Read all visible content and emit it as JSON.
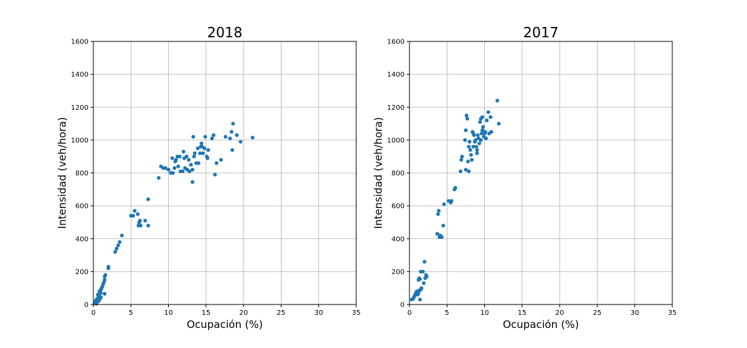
{
  "chart_data": [
    {
      "type": "scatter",
      "title": "2018",
      "xlabel": "Ocupación (%)",
      "ylabel": "Intensidad (veh/hora)",
      "xlim": [
        0,
        35
      ],
      "ylim": [
        0,
        1600
      ],
      "xticks": [
        "0",
        "5",
        "10",
        "15",
        "20",
        "25",
        "30",
        "35"
      ],
      "yticks": [
        "0",
        "200",
        "400",
        "600",
        "800",
        "1000",
        "1200",
        "1400",
        "1600"
      ],
      "grid": true,
      "color": "#1f77b4",
      "series": [
        {
          "points": [
            [
              0.2,
              10
            ],
            [
              0.3,
              20
            ],
            [
              0.4,
              30
            ],
            [
              0.5,
              15
            ],
            [
              0.6,
              40
            ],
            [
              0.7,
              25
            ],
            [
              0.8,
              50
            ],
            [
              0.6,
              60
            ],
            [
              0.9,
              35
            ],
            [
              1.0,
              70
            ],
            [
              0.8,
              80
            ],
            [
              1.0,
              90
            ],
            [
              1.1,
              100
            ],
            [
              1.2,
              110
            ],
            [
              1.3,
              125
            ],
            [
              1.4,
              135
            ],
            [
              1.5,
              150
            ],
            [
              1.5,
              170
            ],
            [
              1.6,
              180
            ],
            [
              1.5,
              65
            ],
            [
              1.0,
              45
            ],
            [
              0.7,
              20
            ],
            [
              0.4,
              5
            ],
            [
              2.0,
              220
            ],
            [
              2.0,
              230
            ],
            [
              2.9,
              320
            ],
            [
              3.1,
              340
            ],
            [
              3.3,
              360
            ],
            [
              3.5,
              380
            ],
            [
              3.8,
              420
            ],
            [
              5.0,
              540
            ],
            [
              5.3,
              540
            ],
            [
              5.5,
              570
            ],
            [
              5.9,
              550
            ],
            [
              6.0,
              480
            ],
            [
              6.1,
              500
            ],
            [
              6.2,
              510
            ],
            [
              6.3,
              480
            ],
            [
              6.9,
              510
            ],
            [
              7.3,
              480
            ],
            [
              7.3,
              640
            ],
            [
              8.7,
              770
            ],
            [
              9.0,
              840
            ],
            [
              9.3,
              830
            ],
            [
              9.6,
              830
            ],
            [
              10.0,
              820
            ],
            [
              10.3,
              800
            ],
            [
              10.5,
              890
            ],
            [
              10.6,
              800
            ],
            [
              10.8,
              830
            ],
            [
              10.9,
              870
            ],
            [
              11.0,
              880
            ],
            [
              11.2,
              900
            ],
            [
              11.3,
              840
            ],
            [
              11.5,
              900
            ],
            [
              11.6,
              810
            ],
            [
              11.9,
              810
            ],
            [
              12.0,
              930
            ],
            [
              12.1,
              890
            ],
            [
              12.2,
              830
            ],
            [
              12.4,
              900
            ],
            [
              12.5,
              820
            ],
            [
              12.7,
              880
            ],
            [
              12.8,
              810
            ],
            [
              13.0,
              850
            ],
            [
              13.2,
              820
            ],
            [
              13.2,
              745
            ],
            [
              13.3,
              1020
            ],
            [
              13.4,
              900
            ],
            [
              13.5,
              920
            ],
            [
              13.7,
              860
            ],
            [
              13.9,
              950
            ],
            [
              14.0,
              860
            ],
            [
              14.2,
              920
            ],
            [
              14.3,
              960
            ],
            [
              14.4,
              980
            ],
            [
              14.5,
              960
            ],
            [
              14.6,
              920
            ],
            [
              14.8,
              950
            ],
            [
              14.9,
              1020
            ],
            [
              15.1,
              900
            ],
            [
              15.2,
              890
            ],
            [
              15.3,
              940
            ],
            [
              15.8,
              1010
            ],
            [
              16.0,
              1030
            ],
            [
              16.2,
              790
            ],
            [
              16.4,
              860
            ],
            [
              17.0,
              880
            ],
            [
              17.6,
              1020
            ],
            [
              18.2,
              1010
            ],
            [
              18.4,
              1050
            ],
            [
              18.5,
              940
            ],
            [
              18.6,
              1100
            ],
            [
              19.1,
              1030
            ],
            [
              19.6,
              990
            ],
            [
              21.2,
              1015
            ]
          ]
        }
      ]
    },
    {
      "type": "scatter",
      "title": "2017",
      "xlabel": "Ocupación (%)",
      "ylabel": "Intensidad (veh/hora)",
      "xlim": [
        0,
        35
      ],
      "ylim": [
        0,
        1600
      ],
      "xticks": [
        "0",
        "5",
        "10",
        "15",
        "20",
        "25",
        "30",
        "35"
      ],
      "yticks": [
        "0",
        "200",
        "400",
        "600",
        "800",
        "1000",
        "1200",
        "1400",
        "1600"
      ],
      "grid": true,
      "color": "#1f77b4",
      "series": [
        {
          "points": [
            [
              0.3,
              30
            ],
            [
              0.5,
              35
            ],
            [
              0.6,
              45
            ],
            [
              0.7,
              55
            ],
            [
              0.8,
              65
            ],
            [
              0.9,
              75
            ],
            [
              1.0,
              80
            ],
            [
              1.1,
              60
            ],
            [
              1.2,
              70
            ],
            [
              1.3,
              85
            ],
            [
              1.4,
              30
            ],
            [
              1.5,
              90
            ],
            [
              1.6,
              100
            ],
            [
              1.2,
              150
            ],
            [
              1.3,
              160
            ],
            [
              1.4,
              155
            ],
            [
              1.5,
              200
            ],
            [
              1.8,
              200
            ],
            [
              1.9,
              130
            ],
            [
              2.0,
              260
            ],
            [
              2.1,
              160
            ],
            [
              2.2,
              180
            ],
            [
              2.3,
              170
            ],
            [
              3.7,
              430
            ],
            [
              3.8,
              550
            ],
            [
              3.9,
              570
            ],
            [
              4.0,
              410
            ],
            [
              4.1,
              420
            ],
            [
              4.3,
              410
            ],
            [
              4.5,
              480
            ],
            [
              4.6,
              610
            ],
            [
              5.2,
              630
            ],
            [
              5.5,
              620
            ],
            [
              5.6,
              630
            ],
            [
              6.0,
              700
            ],
            [
              6.1,
              710
            ],
            [
              6.8,
              810
            ],
            [
              6.9,
              880
            ],
            [
              7.0,
              900
            ],
            [
              7.4,
              1000
            ],
            [
              7.5,
              1060
            ],
            [
              7.6,
              1150
            ],
            [
              7.7,
              1130
            ],
            [
              7.5,
              820
            ],
            [
              7.8,
              870
            ],
            [
              7.9,
              810
            ],
            [
              7.9,
              960
            ],
            [
              8.0,
              990
            ],
            [
              8.1,
              940
            ],
            [
              8.2,
              910
            ],
            [
              8.3,
              880
            ],
            [
              8.4,
              1050
            ],
            [
              8.5,
              1040
            ],
            [
              8.5,
              960
            ],
            [
              8.6,
              1030
            ],
            [
              8.7,
              990
            ],
            [
              8.8,
              1000
            ],
            [
              8.9,
              960
            ],
            [
              9.0,
              920
            ],
            [
              9.0,
              940
            ],
            [
              9.1,
              1030
            ],
            [
              9.2,
              1010
            ],
            [
              9.3,
              980
            ],
            [
              9.4,
              1110
            ],
            [
              9.5,
              1130
            ],
            [
              9.6,
              1040
            ],
            [
              9.7,
              1060
            ],
            [
              9.8,
              1080
            ],
            [
              9.9,
              1020
            ],
            [
              10.0,
              1040
            ],
            [
              10.1,
              1050
            ],
            [
              10.2,
              1010
            ],
            [
              10.3,
              1120
            ],
            [
              10.5,
              1170
            ],
            [
              10.6,
              1040
            ],
            [
              10.8,
              1140
            ],
            [
              10.9,
              1050
            ],
            [
              11.7,
              1240
            ],
            [
              11.9,
              1100
            ],
            [
              9.7,
              1140
            ],
            [
              9.5,
              1000
            ]
          ]
        }
      ]
    }
  ]
}
